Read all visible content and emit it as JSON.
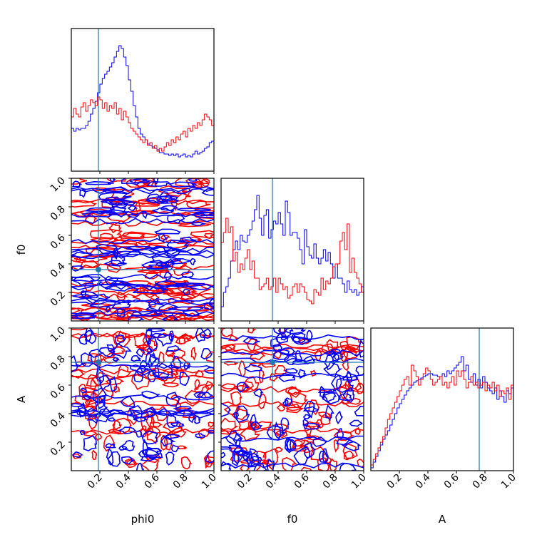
{
  "chart_data": {
    "type": "corner",
    "parameters": [
      "phi0",
      "f0",
      "A"
    ],
    "axis_range": [
      0,
      1
    ],
    "tick_values": [
      0.2,
      0.4,
      0.6,
      0.8,
      1.0
    ],
    "tick_labels": [
      "0.2",
      "0.4",
      "0.6",
      "0.8",
      "1.0"
    ],
    "truths": {
      "phi0": 0.19,
      "f0": 0.36,
      "A": 0.76
    },
    "colors": {
      "series_1": "#0000ff",
      "series_2": "#ff0000",
      "truth": "#1f77b4"
    },
    "series": [
      {
        "color": "#0000ff",
        "hist_phi0": [
          0.3,
          0.28,
          0.3,
          0.29,
          0.3,
          0.3,
          0.32,
          0.35,
          0.4,
          0.44,
          0.49,
          0.55,
          0.61,
          0.65,
          0.68,
          0.7,
          0.73,
          0.76,
          0.8,
          0.84,
          0.88,
          0.86,
          0.8,
          0.74,
          0.64,
          0.56,
          0.46,
          0.38,
          0.3,
          0.26,
          0.24,
          0.22,
          0.19,
          0.18,
          0.17,
          0.16,
          0.15,
          0.13,
          0.13,
          0.12,
          0.12,
          0.11,
          0.12,
          0.11,
          0.12,
          0.1,
          0.11,
          0.12,
          0.1,
          0.11,
          0.1,
          0.12,
          0.14,
          0.12,
          0.13,
          0.14,
          0.16,
          0.17,
          0.2,
          0.21
        ],
        "hist_f0": [
          0.1,
          0.2,
          0.24,
          0.3,
          0.42,
          0.5,
          0.56,
          0.5,
          0.6,
          0.56,
          0.55,
          0.6,
          0.64,
          0.7,
          0.78,
          0.88,
          0.72,
          0.6,
          0.74,
          0.78,
          0.58,
          0.64,
          0.7,
          0.68,
          0.76,
          0.68,
          0.6,
          0.84,
          0.76,
          0.6,
          0.62,
          0.62,
          0.58,
          0.5,
          0.4,
          0.64,
          0.52,
          0.46,
          0.44,
          0.54,
          0.44,
          0.4,
          0.44,
          0.5,
          0.42,
          0.48,
          0.4,
          0.3,
          0.4,
          0.3,
          0.3,
          0.26,
          0.2,
          0.28,
          0.22,
          0.2,
          0.22,
          0.18,
          0.2,
          0.24
        ],
        "hist_A": [
          0.02,
          0.06,
          0.1,
          0.14,
          0.18,
          0.22,
          0.25,
          0.28,
          0.32,
          0.36,
          0.4,
          0.44,
          0.47,
          0.5,
          0.53,
          0.56,
          0.58,
          0.6,
          0.62,
          0.63,
          0.64,
          0.65,
          0.66,
          0.67,
          0.68,
          0.68,
          0.67,
          0.67,
          0.66,
          0.66,
          0.68,
          0.66,
          0.7,
          0.68,
          0.7,
          0.72,
          0.74,
          0.76,
          0.8,
          0.7,
          0.74,
          0.64,
          0.62,
          0.68,
          0.6,
          0.64,
          0.58,
          0.66,
          0.62,
          0.58,
          0.56,
          0.54,
          0.58,
          0.5,
          0.56,
          0.52,
          0.48,
          0.56,
          0.54,
          0.58
        ]
      },
      {
        "color": "#ff0000",
        "hist_phi0": [
          0.38,
          0.44,
          0.4,
          0.38,
          0.45,
          0.48,
          0.42,
          0.46,
          0.5,
          0.48,
          0.46,
          0.52,
          0.5,
          0.44,
          0.48,
          0.42,
          0.46,
          0.44,
          0.48,
          0.4,
          0.44,
          0.36,
          0.42,
          0.38,
          0.34,
          0.3,
          0.28,
          0.26,
          0.24,
          0.22,
          0.2,
          0.22,
          0.18,
          0.2,
          0.16,
          0.18,
          0.14,
          0.16,
          0.14,
          0.17,
          0.2,
          0.18,
          0.22,
          0.2,
          0.24,
          0.22,
          0.26,
          0.28,
          0.24,
          0.3,
          0.28,
          0.32,
          0.3,
          0.34,
          0.32,
          0.36,
          0.4,
          0.38,
          0.36,
          0.32
        ],
        "hist_f0": [
          0.55,
          0.62,
          0.72,
          0.62,
          0.66,
          0.42,
          0.48,
          0.34,
          0.4,
          0.36,
          0.44,
          0.5,
          0.36,
          0.42,
          0.3,
          0.3,
          0.22,
          0.24,
          0.26,
          0.3,
          0.22,
          0.24,
          0.3,
          0.2,
          0.3,
          0.26,
          0.22,
          0.24,
          0.16,
          0.18,
          0.24,
          0.26,
          0.2,
          0.26,
          0.24,
          0.2,
          0.15,
          0.14,
          0.12,
          0.22,
          0.2,
          0.18,
          0.3,
          0.22,
          0.28,
          0.26,
          0.3,
          0.38,
          0.4,
          0.4,
          0.56,
          0.62,
          0.5,
          0.68,
          0.34,
          0.44,
          0.34,
          0.3,
          0.26,
          0.2
        ],
        "hist_A": [
          0.04,
          0.08,
          0.12,
          0.16,
          0.2,
          0.24,
          0.3,
          0.36,
          0.4,
          0.44,
          0.48,
          0.52,
          0.56,
          0.6,
          0.64,
          0.66,
          0.6,
          0.74,
          0.7,
          0.66,
          0.6,
          0.64,
          0.68,
          0.72,
          0.7,
          0.64,
          0.6,
          0.62,
          0.64,
          0.66,
          0.6,
          0.62,
          0.58,
          0.62,
          0.66,
          0.6,
          0.7,
          0.66,
          0.7,
          0.64,
          0.58,
          0.62,
          0.66,
          0.6,
          0.62,
          0.58,
          0.6,
          0.62,
          0.56,
          0.6,
          0.58,
          0.62,
          0.56,
          0.6,
          0.52,
          0.56,
          0.54,
          0.58,
          0.5,
          0.6
        ]
      }
    ]
  }
}
